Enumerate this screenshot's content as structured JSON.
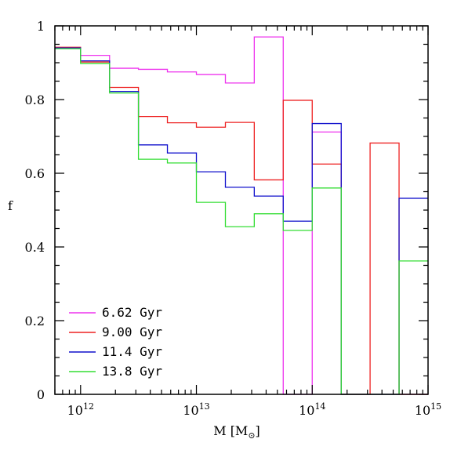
{
  "chart_data": {
    "type": "line",
    "style": "step",
    "title": "",
    "xlabel": {
      "main": "M [M",
      "sub": "⊙",
      "close": "]"
    },
    "ylabel": "f",
    "xscale": "log",
    "xlim": [
      600000000000.0,
      1000000000000000.0
    ],
    "ylim": [
      0,
      1
    ],
    "x_ticks": [
      {
        "base": "10",
        "exp": "12",
        "value": 1000000000000.0
      },
      {
        "base": "10",
        "exp": "13",
        "value": 10000000000000.0
      },
      {
        "base": "10",
        "exp": "14",
        "value": 100000000000000.0
      },
      {
        "base": "10",
        "exp": "15",
        "value": 1000000000000000.0
      }
    ],
    "y_ticks": [
      "0",
      "0.2",
      "0.4",
      "0.6",
      "0.8",
      "1"
    ],
    "bin_edges": [
      600000000000.0,
      1000000000000.0,
      1780000000000.0,
      3160000000000.0,
      5620000000000.0,
      10000000000000.0,
      17800000000000.0,
      31600000000000.0,
      56200000000000.0,
      100000000000000.0,
      178000000000000.0,
      316000000000000.0,
      562000000000000.0,
      1000000000000000.0
    ],
    "legend_position": "bottom-left",
    "series": [
      {
        "name": "6.62 Gyr",
        "color": "#ee33ee",
        "values": [
          0.94,
          0.92,
          0.885,
          0.882,
          0.875,
          0.868,
          0.845,
          0.97,
          0.0,
          0.712,
          0.0,
          0.0,
          0.0
        ]
      },
      {
        "name": "9.00 Gyr",
        "color": "#ee2222",
        "values": [
          0.942,
          0.902,
          0.833,
          0.754,
          0.737,
          0.725,
          0.738,
          0.582,
          0.798,
          0.625,
          0.0,
          0.682,
          0.0
        ]
      },
      {
        "name": "11.4 Gyr",
        "color": "#1111cc",
        "values": [
          0.94,
          0.905,
          0.822,
          0.677,
          0.655,
          0.604,
          0.562,
          0.538,
          0.47,
          0.735,
          0.0,
          0.0,
          0.532
        ]
      },
      {
        "name": "13.8 Gyr",
        "color": "#33dd33",
        "values": [
          0.938,
          0.898,
          0.818,
          0.638,
          0.628,
          0.521,
          0.455,
          0.49,
          0.445,
          0.56,
          0.0,
          0.0,
          0.362
        ]
      }
    ]
  }
}
